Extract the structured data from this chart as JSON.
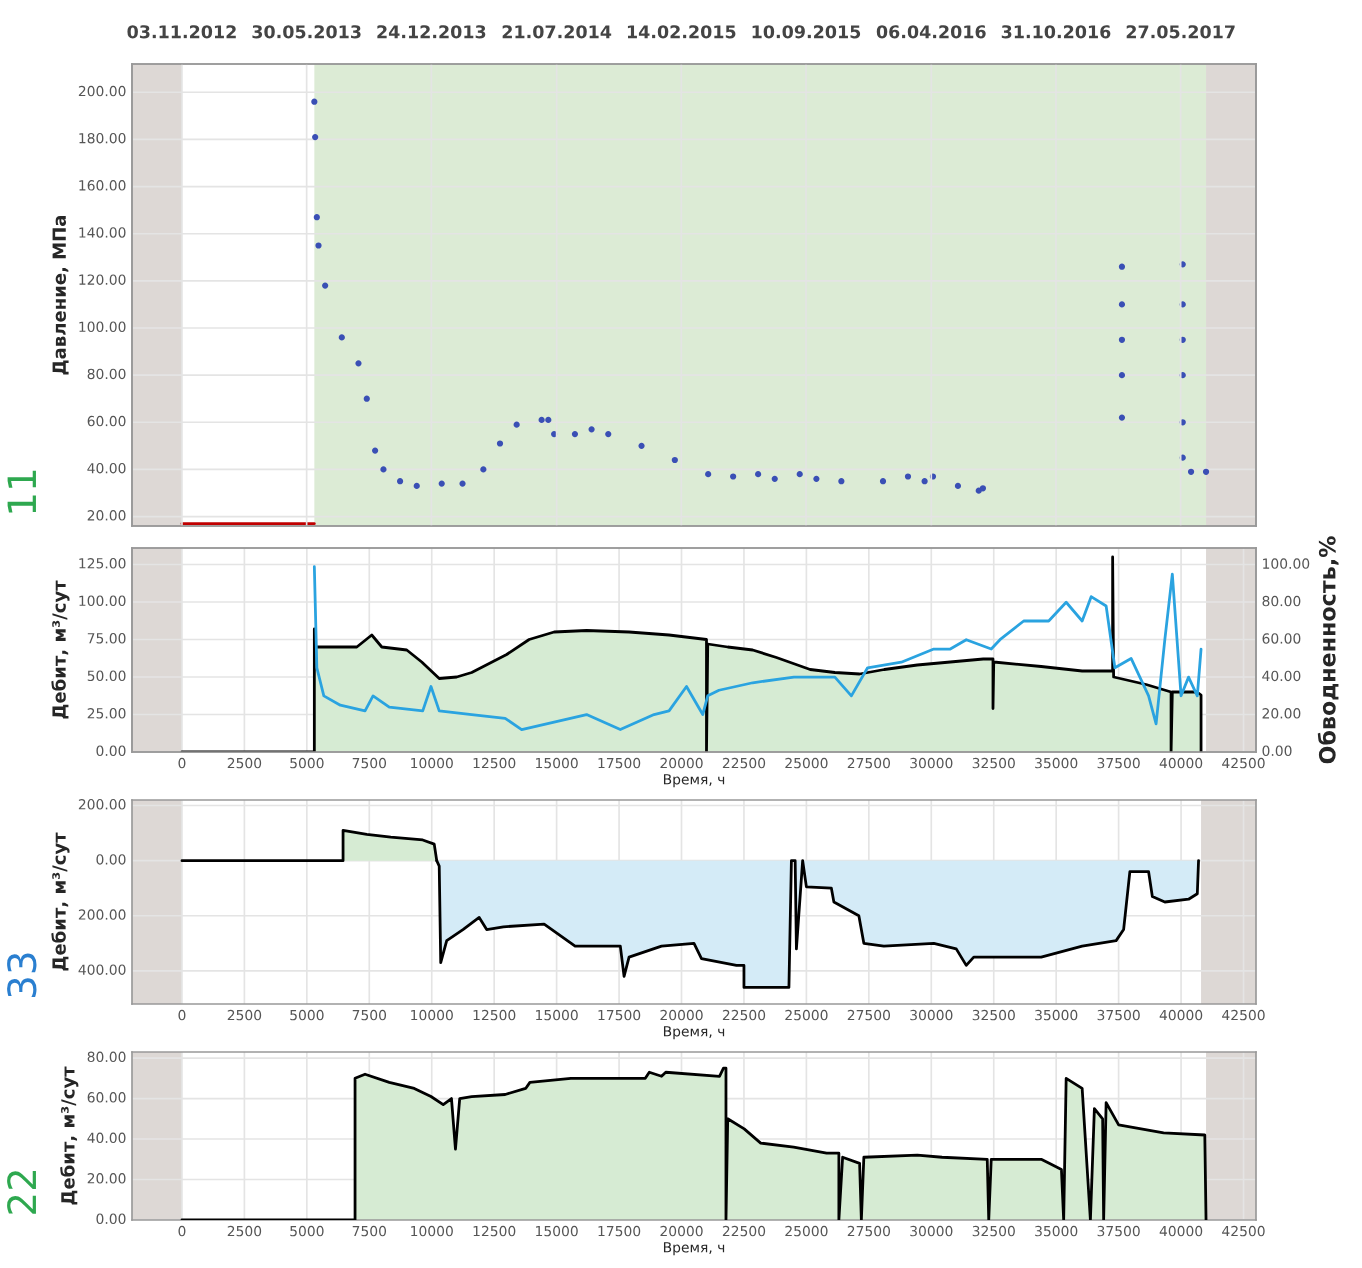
{
  "chart_data": [
    {
      "type": "scatter",
      "ylabel": "Давление, МПа",
      "annotations": [
        "11"
      ],
      "xlim": [
        -2000,
        43000
      ],
      "ylim": [
        16,
        212
      ],
      "yticks": [
        {
          "value": 20,
          "label": "20.00"
        },
        {
          "value": 40,
          "label": "40.00"
        },
        {
          "value": 60,
          "label": "60.00"
        },
        {
          "value": 80,
          "label": "80.00"
        },
        {
          "value": 100,
          "label": "100.00"
        },
        {
          "value": 120,
          "label": "120.00"
        },
        {
          "value": 140,
          "label": "140.00"
        },
        {
          "value": 160,
          "label": "160.00"
        },
        {
          "value": 180,
          "label": "180.00"
        },
        {
          "value": 200,
          "label": "200.00"
        }
      ],
      "x2lim": [
        "2012-08-11T16:00",
        "2017-09-29T16:00"
      ],
      "x2ticks": [
        {
          "value": "2012-11-03",
          "label": "03.11.2012"
        },
        {
          "value": "2013-05-30",
          "label": "30.05.2013"
        },
        {
          "value": "2013-12-24",
          "label": "24.12.2013"
        },
        {
          "value": "2014-07-21",
          "label": "21.07.2014"
        },
        {
          "value": "2015-02-14",
          "label": "14.02.2015"
        },
        {
          "value": "2015-09-10",
          "label": "10.09.2015"
        },
        {
          "value": "2016-04-06",
          "label": "06.04.2016"
        },
        {
          "value": "2016-10-31",
          "label": "31.10.2016"
        },
        {
          "value": "2017-05-27",
          "label": "27.05.2017"
        }
      ],
      "tick_labels": "y",
      "grid": true,
      "bands": [
        {
          "axis": "x",
          "from": -2000,
          "to": 0,
          "color": "#ddd8d5"
        },
        {
          "axis": "x",
          "from": 5300,
          "to": 41000,
          "color": "#dcebd5"
        },
        {
          "axis": "x",
          "from": 41000,
          "to": 43000,
          "color": "#ddd8d5"
        }
      ],
      "series": [
        {
          "type": "scatter",
          "color": "#3a4fb5",
          "x": [
            5300,
            5333,
            5400,
            5467,
            5733,
            6400,
            7067,
            7400,
            7733,
            8067,
            8733,
            9400,
            10400,
            11233,
            12067,
            12733,
            13400,
            14400,
            14667,
            14900,
            15733,
            16400,
            17067,
            18400,
            19733,
            21067,
            22067,
            23067,
            23733,
            24733,
            25400,
            26400,
            28067,
            29067,
            29733,
            30067,
            31067,
            31900,
            32067,
            37633,
            37633,
            37633,
            37633,
            37633,
            40067,
            40067,
            40067,
            40067,
            40067,
            40067,
            40400,
            41000
          ],
          "values": [
            196,
            181,
            147,
            135,
            118,
            96,
            85,
            70,
            48,
            40,
            35,
            33,
            34,
            34,
            40,
            51,
            59,
            61,
            61,
            55,
            55,
            57,
            55,
            50,
            44,
            38,
            37,
            38,
            36,
            38,
            36,
            35,
            35,
            37,
            35,
            37,
            33,
            31,
            32,
            126,
            110,
            95,
            80,
            62,
            127,
            110,
            95,
            80,
            60,
            45,
            39,
            39
          ]
        },
        {
          "type": "line",
          "color": "#c00000",
          "x": [
            0,
            5300
          ],
          "values": [
            17,
            17
          ]
        }
      ]
    },
    {
      "type": "line",
      "xlabel": "Время, ч",
      "ylabel": "Дебит, м³/сут",
      "y2label": "Обводненность,%",
      "xlim": [
        -2000,
        43000
      ],
      "ylim": [
        0,
        136
      ],
      "y2lim": [
        0,
        109
      ],
      "grid": true,
      "xticks": [
        0,
        2500,
        5000,
        7500,
        10000,
        12500,
        15000,
        17500,
        20000,
        22500,
        25000,
        27500,
        30000,
        32500,
        35000,
        37500,
        40000,
        42500
      ],
      "yticks": [
        {
          "value": 0,
          "label": "0.00"
        },
        {
          "value": 25,
          "label": "25.00"
        },
        {
          "value": 50,
          "label": "50.00"
        },
        {
          "value": 75,
          "label": "75.00"
        },
        {
          "value": 100,
          "label": "100.00"
        },
        {
          "value": 125,
          "label": "125.00"
        }
      ],
      "y2ticks": [
        {
          "value": 0,
          "label": "0.00"
        },
        {
          "value": 20,
          "label": "20.00"
        },
        {
          "value": 40,
          "label": "40.00"
        },
        {
          "value": 60,
          "label": "60.00"
        },
        {
          "value": 80,
          "label": "80.00"
        },
        {
          "value": 100,
          "label": "100.00"
        }
      ],
      "colors": [
        "#d6ebd3"
      ],
      "bands": [
        {
          "axis": "x",
          "from": -2000,
          "to": 0,
          "color": "#ddd8d5"
        },
        {
          "axis": "x",
          "from": 41000,
          "to": 43000,
          "color": "#ddd8d5"
        }
      ],
      "series": [
        {
          "type": "area",
          "color": "#000000",
          "x": [
            0,
            5300,
            5300,
            5350,
            7000,
            7600,
            8000,
            9000,
            9600,
            10300,
            11000,
            11600,
            13000,
            13900,
            14900,
            16200,
            17900,
            19500,
            21000,
            21000,
            21050,
            21850,
            22850,
            23800,
            25150,
            26140,
            27130,
            28120,
            29440,
            30760,
            32080,
            32470,
            32470,
            32500,
            34400,
            36040,
            37260,
            37260,
            37300,
            38600,
            39600,
            39600,
            39650,
            40640,
            40800,
            40800
          ],
          "values": [
            0,
            0,
            82,
            70,
            70,
            78,
            70,
            68,
            60,
            49,
            50,
            53,
            65,
            75,
            80,
            81,
            80,
            78,
            75,
            0,
            72,
            70,
            68,
            63,
            55,
            53,
            52,
            55,
            58,
            60,
            62,
            62,
            29,
            60,
            57,
            54,
            54,
            130,
            50,
            45,
            40,
            0,
            40,
            40,
            38,
            0
          ]
        },
        {
          "color": "#2aa3e0",
          "axis": "y2",
          "x": [
            5300,
            5400,
            5680,
            6340,
            7330,
            7650,
            8300,
            9640,
            9970,
            10300,
            11600,
            12940,
            13600,
            14900,
            16200,
            17550,
            18900,
            19500,
            20200,
            20850,
            21050,
            21500,
            22850,
            24500,
            26140,
            26800,
            27450,
            28800,
            30100,
            30760,
            31400,
            32400,
            32750,
            33700,
            34700,
            35400,
            36040,
            36400,
            37000,
            37350,
            38000,
            38700,
            39000,
            39350,
            39650,
            40000,
            40300,
            40650,
            40800
          ],
          "values": [
            99,
            45,
            30,
            25,
            22,
            30,
            24,
            22,
            35,
            22,
            20,
            18,
            12,
            16,
            20,
            12,
            20,
            22,
            35,
            20,
            30,
            33,
            37,
            40,
            40,
            30,
            45,
            48,
            55,
            55,
            60,
            55,
            60,
            70,
            70,
            80,
            70,
            83,
            78,
            45,
            50,
            30,
            15,
            60,
            95,
            30,
            40,
            30,
            55
          ]
        }
      ]
    },
    {
      "type": "line",
      "xlabel": "Время, ч",
      "ylabel": "Дебит, м³/сут",
      "annotations": [
        "33"
      ],
      "xlim": [
        -2000,
        43000
      ],
      "ylim": [
        -520,
        220
      ],
      "grid": true,
      "xticks": [
        0,
        2500,
        5000,
        7500,
        10000,
        12500,
        15000,
        17500,
        20000,
        22500,
        25000,
        27500,
        30000,
        32500,
        35000,
        37500,
        40000,
        42500
      ],
      "yticks": [
        {
          "value": -400,
          "label": "400.00"
        },
        {
          "value": -200,
          "label": "200.00"
        },
        {
          "value": 0,
          "label": "0.00"
        },
        {
          "value": 200,
          "label": "200.00"
        }
      ],
      "colors": [
        "#d6ebd3",
        "#d4ebf7"
      ],
      "bands": [
        {
          "axis": "x",
          "from": -2000,
          "to": 0,
          "color": "#ddd8d5"
        },
        {
          "axis": "x",
          "from": 40800,
          "to": 43000,
          "color": "#ddd8d5"
        }
      ],
      "series": [
        {
          "type": "area",
          "color": "#000000",
          "x": [
            0,
            6450,
            6450,
            7400,
            8360,
            9640,
            10100,
            10200
          ],
          "values": [
            0,
            0,
            110,
            95,
            85,
            75,
            60,
            0
          ]
        },
        {
          "type": "area",
          "color": "#000000",
          "x": [
            10200,
            10300,
            10360,
            10600,
            11250,
            11900,
            12200,
            12870,
            14500,
            15740,
            17550,
            17700,
            17900,
            19200,
            20500,
            20800,
            22200,
            22500,
            22500,
            24300,
            24400,
            24550,
            24600,
            24850,
            25000,
            26000,
            26100,
            27100,
            27300,
            28100,
            30100,
            31000,
            31400,
            31700,
            34400,
            36040,
            37400,
            37700,
            37950,
            38700,
            38850,
            39350,
            40300,
            40650,
            40700
          ],
          "values": [
            0,
            -20,
            -370,
            -290,
            -250,
            -206,
            -250,
            -240,
            -230,
            -310,
            -310,
            -420,
            -350,
            -310,
            -300,
            -355,
            -380,
            -380,
            -460,
            -460,
            0,
            0,
            -320,
            0,
            -95,
            -100,
            -150,
            -200,
            -300,
            -310,
            -300,
            -320,
            -380,
            -350,
            -350,
            -310,
            -290,
            -250,
            -40,
            -40,
            -130,
            -150,
            -140,
            -120,
            0
          ]
        }
      ]
    },
    {
      "type": "line",
      "xlabel": "Время, ч",
      "ylabel": "Дебит, м³/сут",
      "annotations": [
        "22"
      ],
      "xlim": [
        -2000,
        43000
      ],
      "ylim": [
        0,
        83
      ],
      "grid": true,
      "xticks": [
        0,
        2500,
        5000,
        7500,
        10000,
        12500,
        15000,
        17500,
        20000,
        22500,
        25000,
        27500,
        30000,
        32500,
        35000,
        37500,
        40000,
        42500
      ],
      "yticks": [
        {
          "value": 0,
          "label": "0.00"
        },
        {
          "value": 20,
          "label": "20.00"
        },
        {
          "value": 40,
          "label": "40.00"
        },
        {
          "value": 60,
          "label": "60.00"
        },
        {
          "value": 80,
          "label": "80.00"
        }
      ],
      "colors": [
        "#d6ebd3"
      ],
      "bands": [
        {
          "axis": "x",
          "from": -2000,
          "to": 0,
          "color": "#ddd8d5"
        },
        {
          "axis": "x",
          "from": 41000,
          "to": 43000,
          "color": "#ddd8d5"
        }
      ],
      "series": [
        {
          "type": "area",
          "color": "#000000",
          "x": [
            0,
            6930,
            6930,
            7330,
            8300,
            9300,
            9970,
            10460,
            10790,
            10950,
            11120,
            11600,
            12940,
            13760,
            13930,
            15570,
            16200,
            18550,
            18710,
            19200,
            19370,
            21520,
            21680,
            21780,
            21780,
            21850,
            22510,
            23170,
            24490,
            25810,
            26300,
            26300,
            26450,
            27130,
            27200,
            27300,
            29440,
            30430,
            32240,
            32300,
            32400,
            34400,
            34720,
            35210,
            35300,
            35400,
            36040,
            36370,
            36530,
            36860,
            36900,
            37000,
            37500,
            39300,
            40950,
            41000
          ],
          "values": [
            0,
            0,
            70,
            72,
            68,
            65,
            61,
            57,
            60,
            35,
            60,
            61,
            62,
            65,
            68,
            70,
            70,
            70,
            73,
            71,
            73,
            71,
            75,
            75,
            0,
            50,
            45,
            38,
            36,
            33,
            33,
            0,
            31,
            28,
            0,
            31,
            32,
            31,
            30,
            0,
            30,
            30,
            28,
            25,
            0,
            70,
            65,
            0,
            55,
            50,
            0,
            58,
            47,
            43,
            42,
            0
          ]
        }
      ]
    }
  ]
}
